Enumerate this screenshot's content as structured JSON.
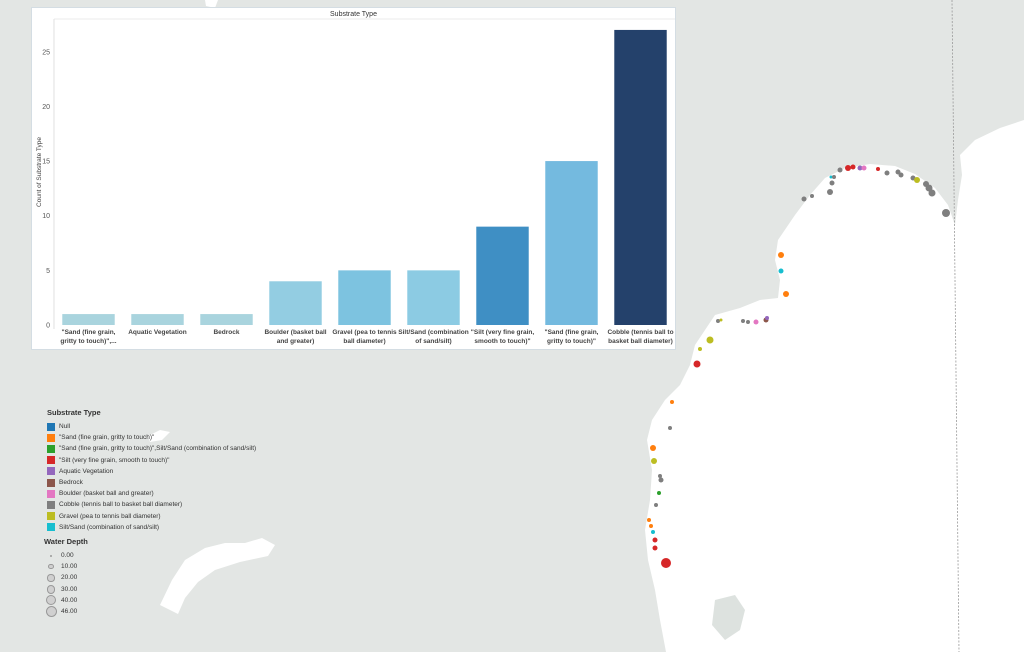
{
  "chart_data": {
    "type": "bar",
    "title": "Substrate Type",
    "ylabel": "Count of Substrate Type",
    "xlabel": "",
    "ylim": [
      0,
      28
    ],
    "yticks": [
      0,
      5,
      10,
      15,
      20,
      25
    ],
    "grid": false,
    "categories": [
      [
        "\"Sand (fine grain,",
        "gritty to touch)\",..."
      ],
      [
        "Aquatic Vegetation"
      ],
      [
        "Bedrock"
      ],
      [
        "Boulder (basket ball",
        "and greater)"
      ],
      [
        "Gravel (pea to tennis",
        "ball diameter)"
      ],
      [
        "Silt/Sand (combination",
        "of sand/silt)"
      ],
      [
        "\"Silt (very fine grain,",
        "smooth to touch)\""
      ],
      [
        "\"Sand (fine grain,",
        "gritty to touch)\""
      ],
      [
        "Cobble (tennis ball to",
        "basket ball diameter)"
      ]
    ],
    "values": [
      1,
      1,
      1,
      4,
      5,
      5,
      9,
      15,
      27
    ],
    "bar_colors": [
      "#a9d4de",
      "#a9d4de",
      "#a9d4de",
      "#93cde2",
      "#7dc3e0",
      "#8ccbe3",
      "#3f8fc4",
      "#74badf",
      "#24416b"
    ]
  },
  "legend": {
    "title": "Substrate Type",
    "items": [
      {
        "label": "Null",
        "color": "#1f77b4"
      },
      {
        "label": "\"Sand (fine grain, gritty to touch)\"",
        "color": "#ff7f0e"
      },
      {
        "label": "\"Sand (fine grain, gritty to touch)\",Silt/Sand (combination of sand/silt)",
        "color": "#2ca02c"
      },
      {
        "label": "\"Silt (very fine grain, smooth to touch)\"",
        "color": "#d62728"
      },
      {
        "label": "Aquatic Vegetation",
        "color": "#9467bd"
      },
      {
        "label": "Bedrock",
        "color": "#8c564b"
      },
      {
        "label": "Boulder (basket ball and greater)",
        "color": "#e377c2"
      },
      {
        "label": "Cobble (tennis ball to basket ball diameter)",
        "color": "#7f7f7f"
      },
      {
        "label": "Gravel (pea to tennis ball diameter)",
        "color": "#bcbd22"
      },
      {
        "label": "Silt/Sand (combination of sand/silt)",
        "color": "#17becf"
      }
    ]
  },
  "size_legend": {
    "title": "Water Depth",
    "items": [
      {
        "label": "0.00",
        "value": 0
      },
      {
        "label": "10.00",
        "value": 10
      },
      {
        "label": "20.00",
        "value": 20
      },
      {
        "label": "30.00",
        "value": 30
      },
      {
        "label": "40.00",
        "value": 40
      },
      {
        "label": "46.00",
        "value": 46
      }
    ]
  },
  "map": {
    "water_color": "#e3e6e4",
    "land_color": "#ffffff"
  }
}
